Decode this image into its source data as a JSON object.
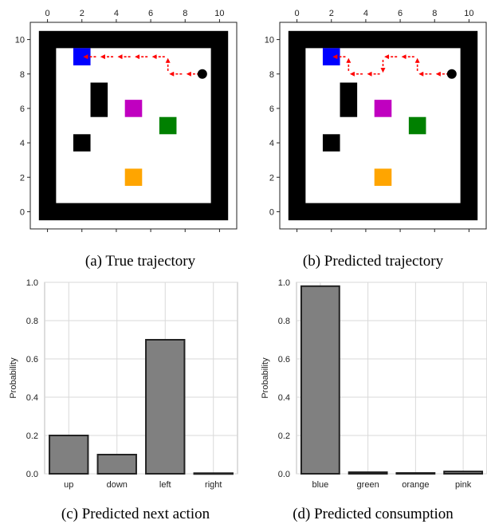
{
  "chart_data": [
    {
      "type": "grid-world",
      "caption": "(a) True trajectory",
      "x_ticks": [
        0,
        2,
        4,
        6,
        8,
        10
      ],
      "y_ticks": [
        0,
        2,
        4,
        6,
        8,
        10
      ],
      "xlim": [
        -1,
        11
      ],
      "ylim": [
        -1,
        11
      ],
      "grid": false,
      "colors": {
        "wall": "#000000",
        "blue": "#0000ff",
        "pink": "#c000c0",
        "green": "#008000",
        "orange": "#ffa500",
        "arrow": "#ff0000"
      },
      "walls": [
        [
          0.5,
          9.5,
          8.5,
          1.0
        ]
      ],
      "obstacles": [
        {
          "color": "black",
          "x": 3,
          "y": 6.5,
          "w": 1,
          "h": 2
        },
        {
          "color": "black",
          "x": 2,
          "y": 4,
          "w": 1,
          "h": 1
        }
      ],
      "objects": [
        {
          "name": "blue",
          "x": 2,
          "y": 9
        },
        {
          "name": "pink",
          "x": 5,
          "y": 6
        },
        {
          "name": "green",
          "x": 7,
          "y": 5
        },
        {
          "name": "orange",
          "x": 5,
          "y": 2
        }
      ],
      "agent": {
        "x": 9,
        "y": 8
      },
      "trajectory": [
        [
          9,
          8
        ],
        [
          8,
          8
        ],
        [
          7,
          8
        ],
        [
          7,
          9
        ],
        [
          6,
          9
        ],
        [
          5,
          9
        ],
        [
          4,
          9
        ],
        [
          3,
          9
        ],
        [
          2,
          9
        ]
      ]
    },
    {
      "type": "grid-world",
      "caption": "(b) Predicted trajectory",
      "x_ticks": [
        0,
        2,
        4,
        6,
        8,
        10
      ],
      "y_ticks": [
        0,
        2,
        4,
        6,
        8,
        10
      ],
      "xlim": [
        -1,
        11
      ],
      "ylim": [
        -1,
        11
      ],
      "grid": false,
      "colors": {
        "wall": "#000000",
        "blue": "#0000ff",
        "pink": "#c000c0",
        "green": "#008000",
        "orange": "#ffa500",
        "arrow": "#ff0000"
      },
      "obstacles": [
        {
          "color": "black",
          "x": 3,
          "y": 6.5,
          "w": 1,
          "h": 2
        },
        {
          "color": "black",
          "x": 2,
          "y": 4,
          "w": 1,
          "h": 1
        }
      ],
      "objects": [
        {
          "name": "blue",
          "x": 2,
          "y": 9
        },
        {
          "name": "pink",
          "x": 5,
          "y": 6
        },
        {
          "name": "green",
          "x": 7,
          "y": 5
        },
        {
          "name": "orange",
          "x": 5,
          "y": 2
        }
      ],
      "agent": {
        "x": 9,
        "y": 8
      },
      "trajectory": [
        [
          9,
          8
        ],
        [
          8,
          8
        ],
        [
          7,
          8
        ],
        [
          7,
          9
        ],
        [
          6,
          9
        ],
        [
          5,
          9
        ],
        [
          5,
          8
        ],
        [
          4,
          8
        ],
        [
          3,
          8
        ],
        [
          3,
          9
        ],
        [
          2,
          9
        ]
      ]
    },
    {
      "type": "bar",
      "caption": "(c) Predicted next action",
      "categories": [
        "up",
        "down",
        "left",
        "right"
      ],
      "values": [
        0.2,
        0.1,
        0.7,
        0.003
      ],
      "ylabel": "Probability",
      "ylim": [
        0,
        1.0
      ],
      "y_ticks": [
        "0.0",
        "0.2",
        "0.4",
        "0.6",
        "0.8",
        "1.0"
      ],
      "grid": true,
      "bar_color": "#808080"
    },
    {
      "type": "bar",
      "caption": "(d) Predicted consumption",
      "categories": [
        "blue",
        "green",
        "orange",
        "pink"
      ],
      "values": [
        0.98,
        0.008,
        0.004,
        0.012
      ],
      "ylabel": "Probability",
      "ylim": [
        0,
        1.0
      ],
      "y_ticks": [
        "0.0",
        "0.2",
        "0.4",
        "0.6",
        "0.8",
        "1.0"
      ],
      "grid": true,
      "bar_color": "#808080"
    }
  ]
}
